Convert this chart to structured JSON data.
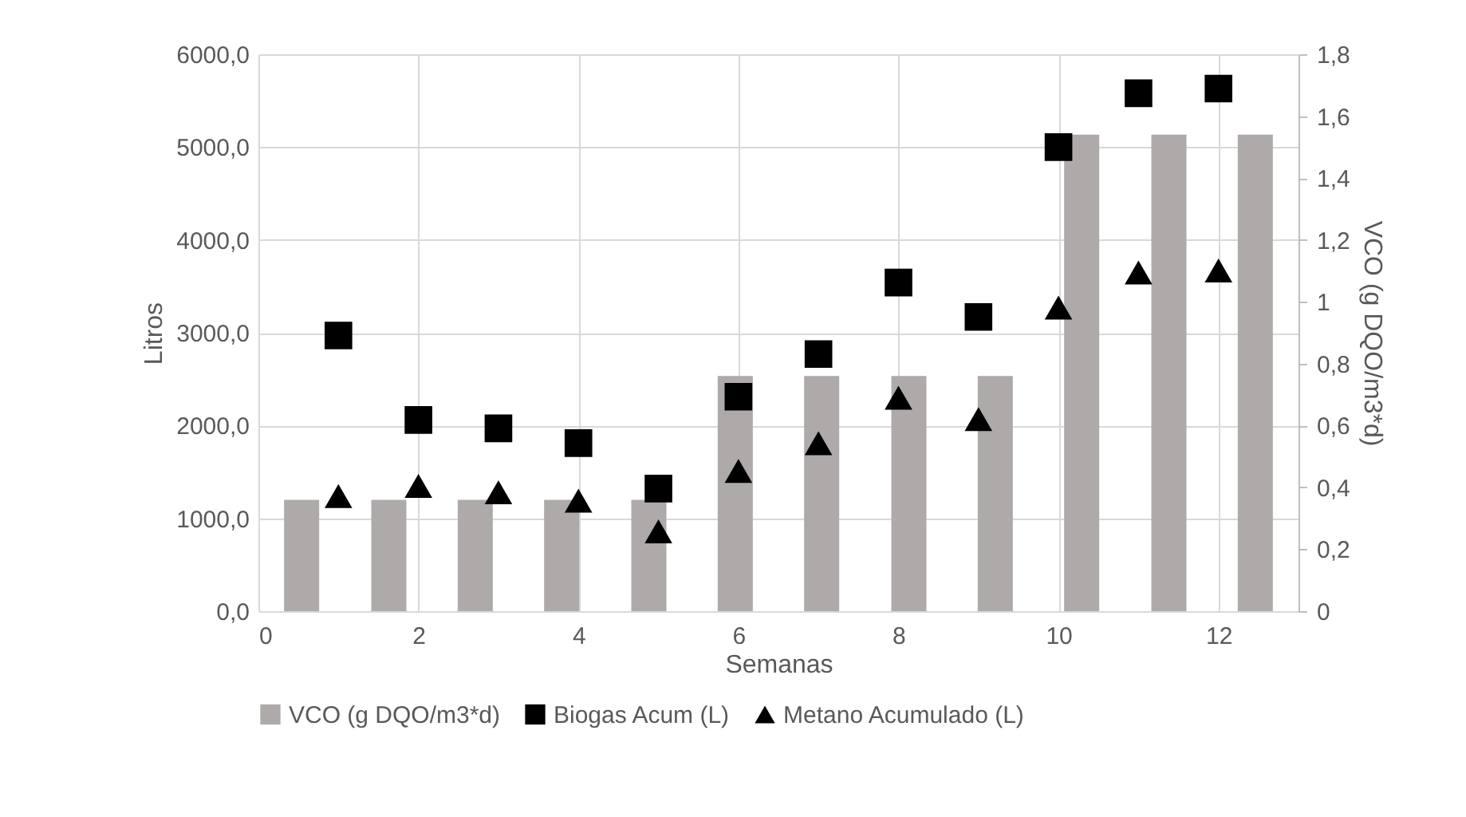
{
  "chart_data": {
    "type": "scatter",
    "xlabel": "Semanas",
    "ylabel": "Litros",
    "y2label": "VCO (g DQO/m3*d)",
    "xlim": [
      0,
      13
    ],
    "xticks": [
      0,
      2,
      4,
      6,
      8,
      10,
      12
    ],
    "ylim": [
      0,
      6000
    ],
    "yticks": [
      {
        "value": 0,
        "label": "0,0"
      },
      {
        "value": 1000,
        "label": "1000,0"
      },
      {
        "value": 2000,
        "label": "2000,0"
      },
      {
        "value": 3000,
        "label": "3000,0"
      },
      {
        "value": 4000,
        "label": "4000,0"
      },
      {
        "value": 5000,
        "label": "5000,0"
      },
      {
        "value": 6000,
        "label": "6000,0"
      }
    ],
    "y2lim": [
      0,
      1.8
    ],
    "y2ticks": [
      0,
      {
        "value": 0.2,
        "label": "0,2"
      },
      {
        "value": 0.4,
        "label": "0,4"
      },
      {
        "value": 0.6,
        "label": "0,6"
      },
      {
        "value": 0.8,
        "label": "0,8"
      },
      1,
      {
        "value": 1.2,
        "label": "1,2"
      },
      {
        "value": 1.4,
        "label": "1,4"
      },
      {
        "value": 1.6,
        "label": "1,6"
      },
      {
        "value": 1.8,
        "label": "1,8"
      }
    ],
    "grid": true,
    "legend": "bottom",
    "series": [
      {
        "name": "VCO (g DQO/m3*d)",
        "type": "bar",
        "axis": "y2",
        "color": "#aeaaaa",
        "x": [
          0.54,
          1.63,
          2.71,
          3.79,
          4.88,
          5.96,
          7.04,
          8.13,
          9.21,
          10.29,
          11.38,
          12.46
        ],
        "values": [
          0.36,
          0.36,
          0.36,
          0.36,
          0.36,
          0.76,
          0.76,
          0.76,
          0.76,
          1.54,
          1.54,
          1.54
        ]
      },
      {
        "name": "Biogas Acum (L)",
        "marker": "square",
        "color": "#000000",
        "x": [
          1,
          2,
          3,
          4,
          5,
          6,
          7,
          8,
          9,
          10,
          11,
          12
        ],
        "values": [
          2970,
          2060,
          1970,
          1810,
          1320,
          2310,
          2770,
          3540,
          3170,
          5000,
          5580,
          5630
        ]
      },
      {
        "name": "Metano Acumulado (L)",
        "marker": "triangle",
        "color": "#000000",
        "x": [
          1,
          2,
          3,
          4,
          5,
          6,
          7,
          8,
          9,
          10,
          11,
          12
        ],
        "values": [
          1240,
          1350,
          1280,
          1190,
          860,
          1510,
          1810,
          2300,
          2070,
          3270,
          3650,
          3670
        ]
      }
    ]
  }
}
